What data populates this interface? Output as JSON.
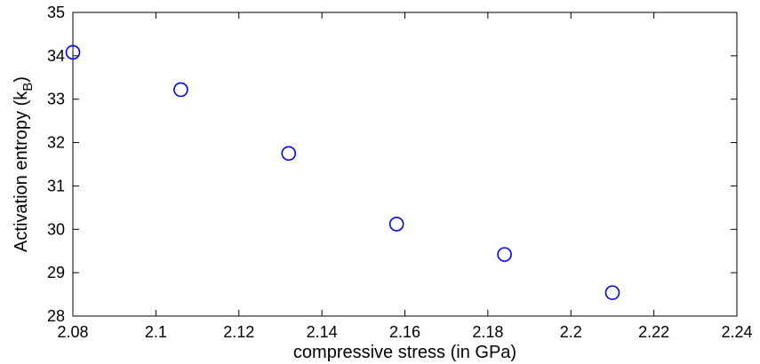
{
  "chart_data": {
    "type": "scatter",
    "title": "",
    "xlabel": "compressive stress (in GPa)",
    "ylabel": "Activation entropy (k",
    "ylabel_subscript": "B",
    "ylabel_suffix": ")",
    "xlim": [
      2.08,
      2.24
    ],
    "ylim": [
      28,
      35
    ],
    "xticks": [
      "2.08",
      "2.1",
      "2.12",
      "2.14",
      "2.16",
      "2.18",
      "2.2",
      "2.22",
      "2.24"
    ],
    "yticks": [
      "28",
      "29",
      "30",
      "31",
      "32",
      "33",
      "34",
      "35"
    ],
    "marker": "open-circle",
    "marker_color": "#0000ff",
    "grid": false,
    "series": [
      {
        "x": [
          2.08,
          2.106,
          2.132,
          2.158,
          2.184,
          2.21
        ],
        "y": [
          34.08,
          33.22,
          31.75,
          30.12,
          29.42,
          28.54
        ]
      }
    ]
  }
}
